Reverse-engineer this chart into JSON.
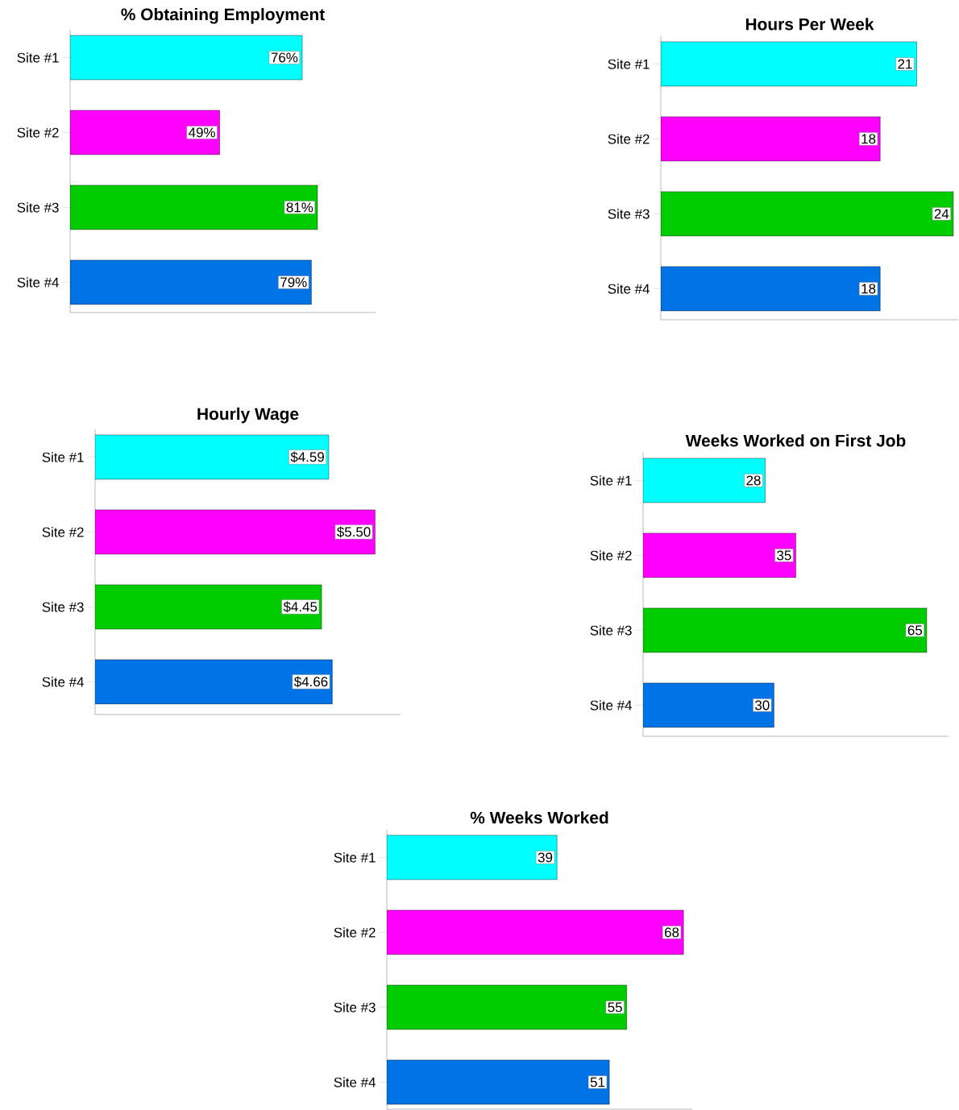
{
  "chart_data": [
    {
      "type": "bar",
      "orientation": "horizontal",
      "title": "% Obtaining Employment",
      "categories": [
        "Site #1",
        "Site #2",
        "Site #3",
        "Site #4"
      ],
      "values": [
        76,
        49,
        81,
        79
      ],
      "value_labels": [
        "76%",
        "49%",
        "81%",
        "79%"
      ],
      "colors": [
        "#00ffff",
        "#ff00ff",
        "#00cc00",
        "#0073e6"
      ],
      "xlim": [
        0,
        100
      ],
      "tick_labels": "y"
    },
    {
      "type": "bar",
      "orientation": "horizontal",
      "title": "Hours Per Week",
      "categories": [
        "Site #1",
        "Site #2",
        "Site #3",
        "Site #4"
      ],
      "values": [
        21,
        18,
        24,
        18
      ],
      "data_labels": true,
      "colors": [
        "#00ffff",
        "#ff00ff",
        "#00cc00",
        "#0073e6"
      ],
      "xlim": [
        0,
        24.4
      ],
      "tick_labels": "y"
    },
    {
      "type": "bar",
      "orientation": "horizontal",
      "title": "Hourly Wage",
      "categories": [
        "Site #1",
        "Site #2",
        "Site #3",
        "Site #4"
      ],
      "values": [
        4.59,
        5.5,
        4.45,
        4.66
      ],
      "value_labels": [
        "$4.59",
        "$5.50",
        "$4.45",
        "$4.66"
      ],
      "colors": [
        "#00ffff",
        "#ff00ff",
        "#00cc00",
        "#0073e6"
      ],
      "xlim": [
        0,
        6
      ],
      "tick_labels": "y"
    },
    {
      "type": "bar",
      "orientation": "horizontal",
      "title": "Weeks Worked on First Job",
      "categories": [
        "Site #1",
        "Site #2",
        "Site #3",
        "Site #4"
      ],
      "values": [
        28,
        35,
        65,
        30
      ],
      "data_labels": true,
      "colors": [
        "#00ffff",
        "#ff00ff",
        "#00cc00",
        "#0073e6"
      ],
      "xlim": [
        0,
        70
      ],
      "tick_labels": "y"
    },
    {
      "type": "bar",
      "orientation": "horizontal",
      "title": "% Weeks Worked",
      "categories": [
        "Site #1",
        "Site #2",
        "Site #3",
        "Site #4"
      ],
      "values": [
        39,
        68,
        55,
        51
      ],
      "data_labels": true,
      "colors": [
        "#00ffff",
        "#ff00ff",
        "#00cc00",
        "#0073e6"
      ],
      "xlim": [
        0,
        70
      ],
      "tick_labels": "y"
    }
  ]
}
